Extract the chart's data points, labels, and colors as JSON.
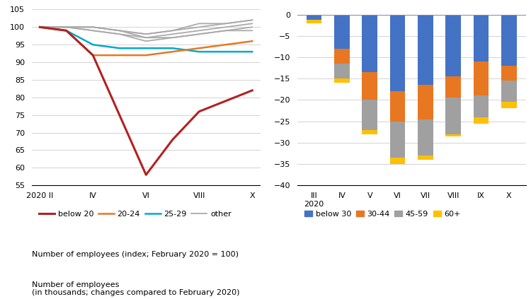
{
  "line_x": [
    0,
    1,
    2,
    3,
    4,
    5,
    6,
    7,
    8
  ],
  "line_x_ticks": [
    0,
    2,
    4,
    6,
    8
  ],
  "line_x_ticklabels": [
    "2020 II",
    "IV",
    "VI",
    "VIII",
    "X"
  ],
  "below20": [
    100,
    99,
    92,
    75,
    58,
    68,
    76,
    79,
    82
  ],
  "age2024": [
    100,
    99,
    92,
    92,
    92,
    93,
    94,
    95,
    96
  ],
  "age2529": [
    100,
    99,
    95,
    94,
    94,
    94,
    93,
    93,
    93
  ],
  "other_lines": [
    [
      100,
      100,
      99,
      98,
      97,
      97,
      98,
      99,
      100
    ],
    [
      100,
      100,
      100,
      99,
      97,
      98,
      99,
      100,
      101
    ],
    [
      100,
      100,
      100,
      99,
      98,
      99,
      100,
      101,
      102
    ],
    [
      100,
      100,
      100,
      99,
      98,
      99,
      101,
      101,
      102
    ],
    [
      100,
      100,
      99,
      98,
      96,
      97,
      98,
      99,
      99
    ]
  ],
  "line_colors": {
    "below20": "#B22222",
    "age2024": "#E87722",
    "age2529": "#00AACC",
    "other": "#AAAAAA"
  },
  "line_ylim": [
    55,
    106
  ],
  "line_yticks": [
    55,
    60,
    65,
    70,
    75,
    80,
    85,
    90,
    95,
    100,
    105
  ],
  "bar_categories": [
    "III\n2020",
    "IV",
    "V",
    "VI",
    "VII",
    "VIII",
    "IX",
    "X"
  ],
  "bar_below30": [
    -1.5,
    -8.0,
    -13.5,
    -18.0,
    -16.5,
    -14.5,
    -11.0,
    -12.0
  ],
  "bar_3044": [
    -0.3,
    -3.5,
    -6.5,
    -7.0,
    -8.0,
    -5.0,
    -8.0,
    -3.5
  ],
  "bar_4559": [
    -0.2,
    -3.5,
    -7.0,
    -8.5,
    -8.5,
    -9.0,
    -6.5,
    -6.5
  ],
  "bar_60plus": [
    0.8,
    -1.0,
    -1.0,
    -1.5,
    -1.0,
    0.5,
    1.5,
    1.5
  ],
  "bar_colors": {
    "below30": "#4472C4",
    "3044": "#E87722",
    "4559": "#A0A0A0",
    "60plus": "#FFC000"
  },
  "bar_ylim": [
    -40,
    2
  ],
  "bar_yticks": [
    0,
    -5,
    -10,
    -15,
    -20,
    -25,
    -30,
    -35,
    -40
  ],
  "line_label": "Number of employees (index; February 2020 = 100)",
  "bar_label_line1": "Number of employees",
  "bar_label_line2": "(in thousands; changes compared to February 2020)"
}
